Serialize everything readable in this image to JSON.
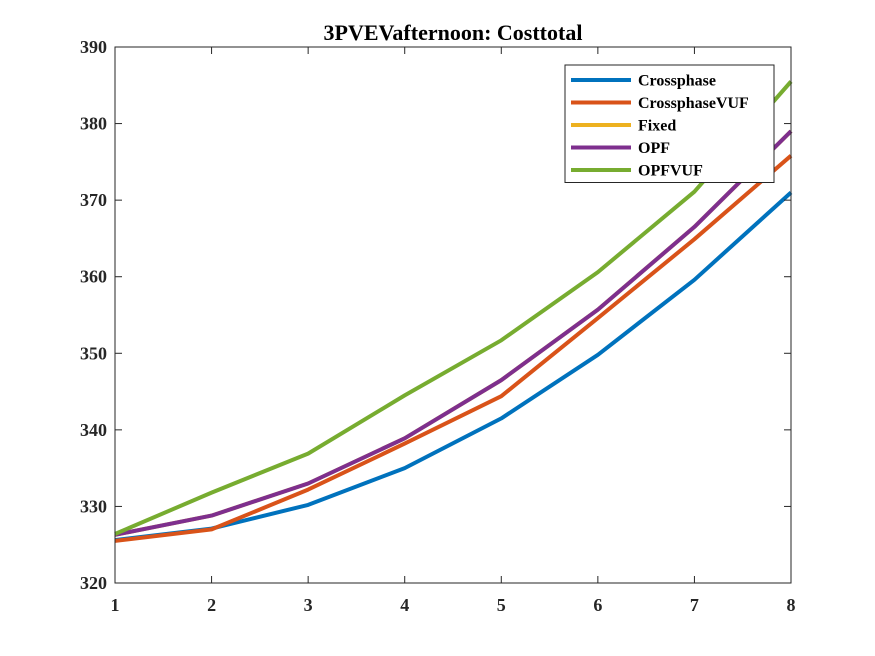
{
  "chart_data": {
    "type": "line",
    "title": "3PVEVafternoon: Costtotal",
    "xlabel": "",
    "ylabel": "",
    "x": [
      1,
      2,
      3,
      4,
      5,
      6,
      7,
      8
    ],
    "xlim": [
      1,
      8
    ],
    "ylim": [
      320,
      390
    ],
    "xticks": [
      "1",
      "2",
      "3",
      "4",
      "5",
      "6",
      "7",
      "8"
    ],
    "yticks": [
      "320",
      "330",
      "340",
      "350",
      "360",
      "370",
      "380",
      "390"
    ],
    "grid": false,
    "legend_position": "top-right",
    "series": [
      {
        "name": "Crossphase",
        "color": "#0072BD",
        "values": [
          325.6,
          327.1,
          330.2,
          335.0,
          341.5,
          349.8,
          359.6,
          371.0
        ]
      },
      {
        "name": "CrossphaseVUF",
        "color": "#D95319",
        "values": [
          325.5,
          327.0,
          332.2,
          338.2,
          344.4,
          354.6,
          364.9,
          375.8
        ]
      },
      {
        "name": "Fixed",
        "color": "#EDB120",
        "values": [
          326.3,
          328.8,
          333.0,
          338.9,
          346.5,
          355.7,
          366.5,
          379.0
        ]
      },
      {
        "name": "OPF",
        "color": "#7E2F8E",
        "values": [
          326.3,
          328.8,
          333.0,
          338.9,
          346.5,
          355.7,
          366.5,
          379.0
        ]
      },
      {
        "name": "OPFVUF",
        "color": "#77AC30",
        "values": [
          326.4,
          331.8,
          336.9,
          344.5,
          351.7,
          360.6,
          371.1,
          385.5
        ]
      }
    ]
  }
}
